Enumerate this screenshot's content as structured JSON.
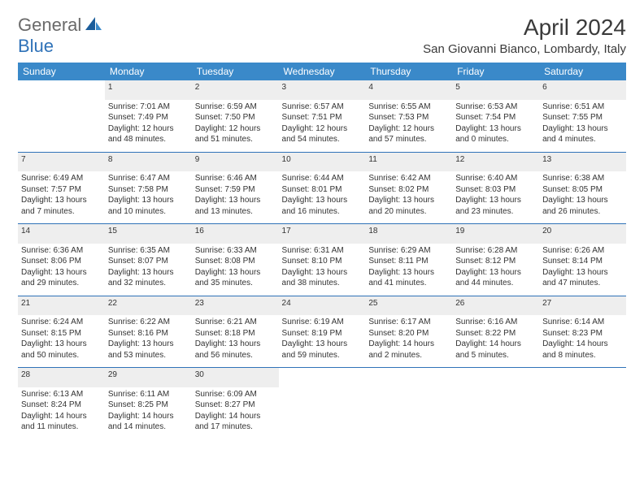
{
  "logo": {
    "general": "General",
    "blue": "Blue"
  },
  "title": "April 2024",
  "location": "San Giovanni Bianco, Lombardy, Italy",
  "colors": {
    "header_bg": "#3a89c9",
    "header_text": "#ffffff",
    "daynum_bg": "#eeeeee",
    "border": "#2f72b8",
    "body_text": "#333333",
    "logo_gray": "#6a6a6a",
    "logo_blue": "#2f72b8"
  },
  "weekdays": [
    "Sunday",
    "Monday",
    "Tuesday",
    "Wednesday",
    "Thursday",
    "Friday",
    "Saturday"
  ],
  "weeks": [
    [
      null,
      {
        "n": "1",
        "sr": "Sunrise: 7:01 AM",
        "ss": "Sunset: 7:49 PM",
        "d1": "Daylight: 12 hours",
        "d2": "and 48 minutes."
      },
      {
        "n": "2",
        "sr": "Sunrise: 6:59 AM",
        "ss": "Sunset: 7:50 PM",
        "d1": "Daylight: 12 hours",
        "d2": "and 51 minutes."
      },
      {
        "n": "3",
        "sr": "Sunrise: 6:57 AM",
        "ss": "Sunset: 7:51 PM",
        "d1": "Daylight: 12 hours",
        "d2": "and 54 minutes."
      },
      {
        "n": "4",
        "sr": "Sunrise: 6:55 AM",
        "ss": "Sunset: 7:53 PM",
        "d1": "Daylight: 12 hours",
        "d2": "and 57 minutes."
      },
      {
        "n": "5",
        "sr": "Sunrise: 6:53 AM",
        "ss": "Sunset: 7:54 PM",
        "d1": "Daylight: 13 hours",
        "d2": "and 0 minutes."
      },
      {
        "n": "6",
        "sr": "Sunrise: 6:51 AM",
        "ss": "Sunset: 7:55 PM",
        "d1": "Daylight: 13 hours",
        "d2": "and 4 minutes."
      }
    ],
    [
      {
        "n": "7",
        "sr": "Sunrise: 6:49 AM",
        "ss": "Sunset: 7:57 PM",
        "d1": "Daylight: 13 hours",
        "d2": "and 7 minutes."
      },
      {
        "n": "8",
        "sr": "Sunrise: 6:47 AM",
        "ss": "Sunset: 7:58 PM",
        "d1": "Daylight: 13 hours",
        "d2": "and 10 minutes."
      },
      {
        "n": "9",
        "sr": "Sunrise: 6:46 AM",
        "ss": "Sunset: 7:59 PM",
        "d1": "Daylight: 13 hours",
        "d2": "and 13 minutes."
      },
      {
        "n": "10",
        "sr": "Sunrise: 6:44 AM",
        "ss": "Sunset: 8:01 PM",
        "d1": "Daylight: 13 hours",
        "d2": "and 16 minutes."
      },
      {
        "n": "11",
        "sr": "Sunrise: 6:42 AM",
        "ss": "Sunset: 8:02 PM",
        "d1": "Daylight: 13 hours",
        "d2": "and 20 minutes."
      },
      {
        "n": "12",
        "sr": "Sunrise: 6:40 AM",
        "ss": "Sunset: 8:03 PM",
        "d1": "Daylight: 13 hours",
        "d2": "and 23 minutes."
      },
      {
        "n": "13",
        "sr": "Sunrise: 6:38 AM",
        "ss": "Sunset: 8:05 PM",
        "d1": "Daylight: 13 hours",
        "d2": "and 26 minutes."
      }
    ],
    [
      {
        "n": "14",
        "sr": "Sunrise: 6:36 AM",
        "ss": "Sunset: 8:06 PM",
        "d1": "Daylight: 13 hours",
        "d2": "and 29 minutes."
      },
      {
        "n": "15",
        "sr": "Sunrise: 6:35 AM",
        "ss": "Sunset: 8:07 PM",
        "d1": "Daylight: 13 hours",
        "d2": "and 32 minutes."
      },
      {
        "n": "16",
        "sr": "Sunrise: 6:33 AM",
        "ss": "Sunset: 8:08 PM",
        "d1": "Daylight: 13 hours",
        "d2": "and 35 minutes."
      },
      {
        "n": "17",
        "sr": "Sunrise: 6:31 AM",
        "ss": "Sunset: 8:10 PM",
        "d1": "Daylight: 13 hours",
        "d2": "and 38 minutes."
      },
      {
        "n": "18",
        "sr": "Sunrise: 6:29 AM",
        "ss": "Sunset: 8:11 PM",
        "d1": "Daylight: 13 hours",
        "d2": "and 41 minutes."
      },
      {
        "n": "19",
        "sr": "Sunrise: 6:28 AM",
        "ss": "Sunset: 8:12 PM",
        "d1": "Daylight: 13 hours",
        "d2": "and 44 minutes."
      },
      {
        "n": "20",
        "sr": "Sunrise: 6:26 AM",
        "ss": "Sunset: 8:14 PM",
        "d1": "Daylight: 13 hours",
        "d2": "and 47 minutes."
      }
    ],
    [
      {
        "n": "21",
        "sr": "Sunrise: 6:24 AM",
        "ss": "Sunset: 8:15 PM",
        "d1": "Daylight: 13 hours",
        "d2": "and 50 minutes."
      },
      {
        "n": "22",
        "sr": "Sunrise: 6:22 AM",
        "ss": "Sunset: 8:16 PM",
        "d1": "Daylight: 13 hours",
        "d2": "and 53 minutes."
      },
      {
        "n": "23",
        "sr": "Sunrise: 6:21 AM",
        "ss": "Sunset: 8:18 PM",
        "d1": "Daylight: 13 hours",
        "d2": "and 56 minutes."
      },
      {
        "n": "24",
        "sr": "Sunrise: 6:19 AM",
        "ss": "Sunset: 8:19 PM",
        "d1": "Daylight: 13 hours",
        "d2": "and 59 minutes."
      },
      {
        "n": "25",
        "sr": "Sunrise: 6:17 AM",
        "ss": "Sunset: 8:20 PM",
        "d1": "Daylight: 14 hours",
        "d2": "and 2 minutes."
      },
      {
        "n": "26",
        "sr": "Sunrise: 6:16 AM",
        "ss": "Sunset: 8:22 PM",
        "d1": "Daylight: 14 hours",
        "d2": "and 5 minutes."
      },
      {
        "n": "27",
        "sr": "Sunrise: 6:14 AM",
        "ss": "Sunset: 8:23 PM",
        "d1": "Daylight: 14 hours",
        "d2": "and 8 minutes."
      }
    ],
    [
      {
        "n": "28",
        "sr": "Sunrise: 6:13 AM",
        "ss": "Sunset: 8:24 PM",
        "d1": "Daylight: 14 hours",
        "d2": "and 11 minutes."
      },
      {
        "n": "29",
        "sr": "Sunrise: 6:11 AM",
        "ss": "Sunset: 8:25 PM",
        "d1": "Daylight: 14 hours",
        "d2": "and 14 minutes."
      },
      {
        "n": "30",
        "sr": "Sunrise: 6:09 AM",
        "ss": "Sunset: 8:27 PM",
        "d1": "Daylight: 14 hours",
        "d2": "and 17 minutes."
      },
      null,
      null,
      null,
      null
    ]
  ]
}
